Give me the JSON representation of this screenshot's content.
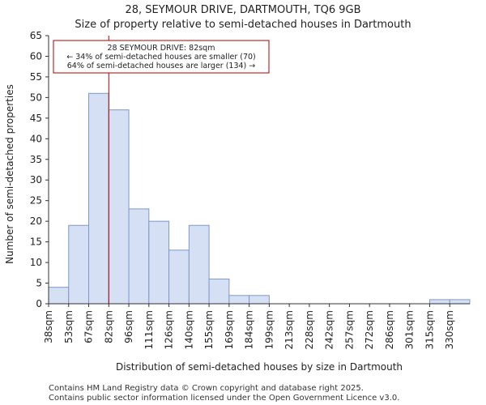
{
  "header": {
    "title": "28, SEYMOUR DRIVE, DARTMOUTH, TQ6 9GB",
    "subtitle": "Size of property relative to semi-detached houses in Dartmouth"
  },
  "footer": {
    "line1": "Contains HM Land Registry data © Crown copyright and database right 2025.",
    "line2": "Contains public sector information licensed under the Open Government Licence v3.0."
  },
  "colors": {
    "bar_fill": "#d6e0f5",
    "bar_stroke": "#7f97c7",
    "marker": "#b20000"
  },
  "chart_data": {
    "type": "bar",
    "title": "28, SEYMOUR DRIVE, DARTMOUTH, TQ6 9GB",
    "subtitle": "Size of property relative to semi-detached houses in Dartmouth",
    "xlabel": "Distribution of semi-detached houses by size in Dartmouth",
    "ylabel": "Number of semi-detached properties",
    "categories": [
      "38sqm",
      "53sqm",
      "67sqm",
      "82sqm",
      "96sqm",
      "111sqm",
      "126sqm",
      "140sqm",
      "155sqm",
      "169sqm",
      "184sqm",
      "199sqm",
      "213sqm",
      "228sqm",
      "242sqm",
      "257sqm",
      "272sqm",
      "286sqm",
      "301sqm",
      "315sqm",
      "330sqm"
    ],
    "values": [
      4,
      19,
      51,
      47,
      23,
      20,
      13,
      19,
      6,
      2,
      2,
      0,
      0,
      0,
      0,
      0,
      0,
      0,
      0,
      1,
      1
    ],
    "ylim": [
      0,
      65
    ],
    "yticks": [
      0,
      5,
      10,
      15,
      20,
      25,
      30,
      35,
      40,
      45,
      50,
      55,
      60,
      65
    ],
    "grid": false,
    "marker": {
      "position_index": 3,
      "annotation": {
        "line1": "28 SEYMOUR DRIVE: 82sqm",
        "line2": "← 34% of semi-detached houses are smaller (70)",
        "line3": "64% of semi-detached houses are larger (134) →"
      }
    }
  }
}
